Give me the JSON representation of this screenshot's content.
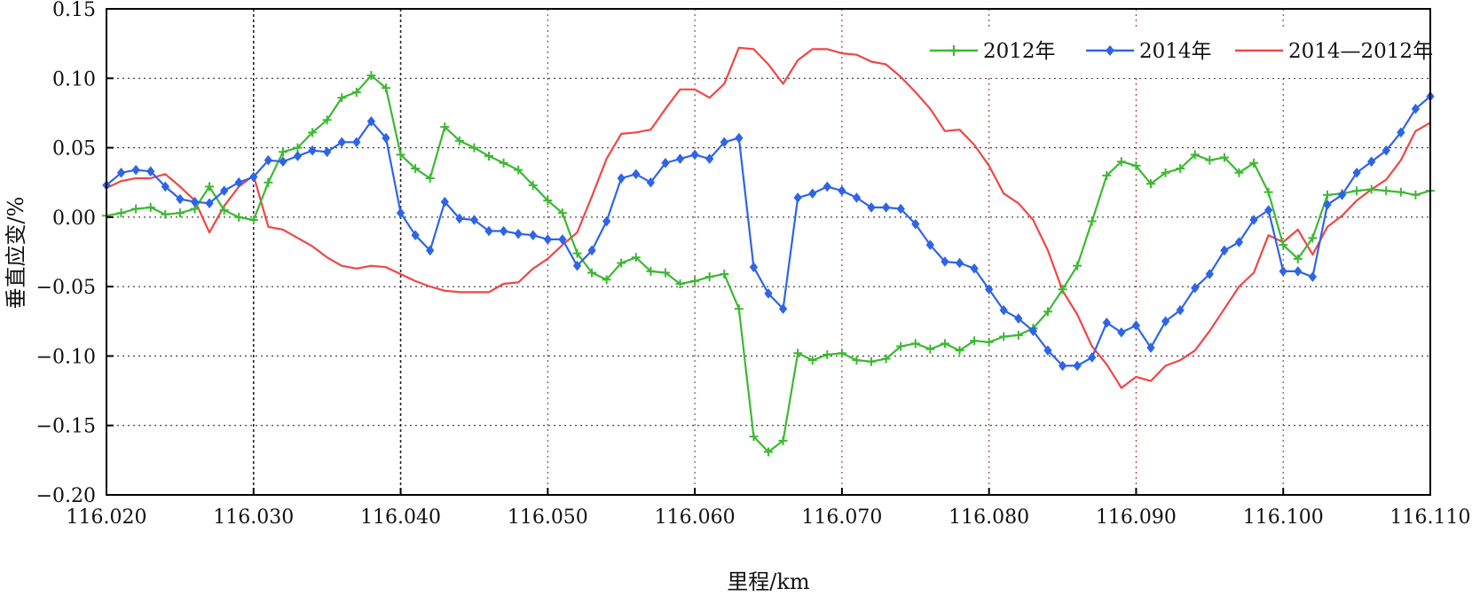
{
  "chart_data": {
    "type": "line",
    "title": "",
    "xlabel": "里程/km",
    "ylabel": "垂直应变/%",
    "xlim": [
      116.02,
      116.11
    ],
    "ylim": [
      -0.2,
      0.15
    ],
    "xticks": [
      "116.020",
      "116.030",
      "116.040",
      "116.050",
      "116.060",
      "116.070",
      "116.080",
      "116.090",
      "116.100",
      "116.110"
    ],
    "yticks": [
      "0.15",
      "0.10",
      "0.05",
      "0.00",
      "−0.05",
      "−0.10",
      "−0.15",
      "−0.20"
    ],
    "grid": true,
    "legend_position": "top-right",
    "x": [
      116.02,
      116.021,
      116.022,
      116.023,
      116.024,
      116.025,
      116.026,
      116.027,
      116.028,
      116.029,
      116.03,
      116.031,
      116.032,
      116.033,
      116.034,
      116.035,
      116.036,
      116.037,
      116.038,
      116.039,
      116.04,
      116.041,
      116.042,
      116.043,
      116.044,
      116.045,
      116.046,
      116.047,
      116.048,
      116.049,
      116.05,
      116.051,
      116.052,
      116.053,
      116.054,
      116.055,
      116.056,
      116.057,
      116.058,
      116.059,
      116.06,
      116.061,
      116.062,
      116.063,
      116.064,
      116.065,
      116.066,
      116.067,
      116.068,
      116.069,
      116.07,
      116.071,
      116.072,
      116.073,
      116.074,
      116.075,
      116.076,
      116.077,
      116.078,
      116.079,
      116.08,
      116.081,
      116.082,
      116.083,
      116.084,
      116.085,
      116.086,
      116.087,
      116.088,
      116.089,
      116.09,
      116.091,
      116.092,
      116.093,
      116.094,
      116.095,
      116.096,
      116.097,
      116.098,
      116.099,
      116.1,
      116.101,
      116.102,
      116.103,
      116.104,
      116.105,
      116.106,
      116.107,
      116.108,
      116.109,
      116.11
    ],
    "series": [
      {
        "name": "2012年",
        "color": "#3cb832",
        "marker": "plus",
        "values": [
          0.001,
          0.003,
          0.006,
          0.007,
          0.002,
          0.003,
          0.006,
          0.022,
          0.005,
          0.0,
          -0.002,
          0.025,
          0.047,
          0.05,
          0.061,
          0.07,
          0.086,
          0.09,
          0.102,
          0.093,
          0.045,
          0.035,
          0.028,
          0.065,
          0.055,
          0.05,
          0.044,
          0.039,
          0.034,
          0.023,
          0.012,
          0.003,
          -0.026,
          -0.04,
          -0.045,
          -0.033,
          -0.029,
          -0.039,
          -0.04,
          -0.048,
          -0.046,
          -0.043,
          -0.041,
          -0.066,
          -0.158,
          -0.169,
          -0.161,
          -0.098,
          -0.103,
          -0.099,
          -0.098,
          -0.103,
          -0.104,
          -0.102,
          -0.093,
          -0.091,
          -0.095,
          -0.091,
          -0.096,
          -0.089,
          -0.09,
          -0.086,
          -0.085,
          -0.08,
          -0.068,
          -0.052,
          -0.035,
          -0.003,
          0.03,
          0.04,
          0.037,
          0.024,
          0.032,
          0.035,
          0.045,
          0.041,
          0.043,
          0.032,
          0.039,
          0.018,
          -0.02,
          -0.03,
          -0.015,
          0.016,
          0.017,
          0.019,
          0.02,
          0.019,
          0.018,
          0.016,
          0.019
        ]
      },
      {
        "name": "2014年",
        "color": "#2f64e6",
        "marker": "diamond",
        "values": [
          0.023,
          0.032,
          0.034,
          0.033,
          0.022,
          0.013,
          0.011,
          0.01,
          0.019,
          0.025,
          0.029,
          0.041,
          0.04,
          0.044,
          0.048,
          0.047,
          0.054,
          0.054,
          0.069,
          0.057,
          0.003,
          -0.013,
          -0.024,
          0.011,
          -0.001,
          -0.002,
          -0.01,
          -0.01,
          -0.012,
          -0.013,
          -0.016,
          -0.016,
          -0.035,
          -0.024,
          -0.003,
          0.028,
          0.031,
          0.025,
          0.039,
          0.042,
          0.045,
          0.042,
          0.054,
          0.057,
          -0.036,
          -0.055,
          -0.066,
          0.014,
          0.017,
          0.022,
          0.019,
          0.014,
          0.007,
          0.007,
          0.006,
          -0.005,
          -0.02,
          -0.032,
          -0.033,
          -0.037,
          -0.052,
          -0.067,
          -0.073,
          -0.082,
          -0.096,
          -0.107,
          -0.107,
          -0.101,
          -0.076,
          -0.083,
          -0.078,
          -0.094,
          -0.075,
          -0.067,
          -0.051,
          -0.041,
          -0.024,
          -0.018,
          -0.002,
          0.005,
          -0.039,
          -0.039,
          -0.043,
          0.009,
          0.016,
          0.032,
          0.04,
          0.048,
          0.061,
          0.078,
          0.087
        ]
      },
      {
        "name": "2014—2012年",
        "color": "#f24545",
        "marker": "none",
        "values": [
          0.021,
          0.026,
          0.028,
          0.028,
          0.031,
          0.022,
          0.012,
          -0.011,
          0.008,
          0.022,
          0.03,
          -0.007,
          -0.009,
          -0.015,
          -0.021,
          -0.029,
          -0.035,
          -0.037,
          -0.035,
          -0.036,
          -0.041,
          -0.046,
          -0.05,
          -0.053,
          -0.054,
          -0.054,
          -0.054,
          -0.048,
          -0.047,
          -0.037,
          -0.03,
          -0.02,
          -0.011,
          0.015,
          0.042,
          0.06,
          0.061,
          0.063,
          0.078,
          0.092,
          0.092,
          0.086,
          0.096,
          0.122,
          0.121,
          0.11,
          0.096,
          0.113,
          0.121,
          0.121,
          0.118,
          0.117,
          0.112,
          0.11,
          0.101,
          0.09,
          0.078,
          0.062,
          0.063,
          0.052,
          0.037,
          0.017,
          0.01,
          -0.002,
          -0.024,
          -0.053,
          -0.07,
          -0.093,
          -0.106,
          -0.123,
          -0.115,
          -0.118,
          -0.107,
          -0.103,
          -0.096,
          -0.082,
          -0.066,
          -0.05,
          -0.04,
          -0.013,
          -0.018,
          -0.009,
          -0.027,
          -0.007,
          0.001,
          0.012,
          0.02,
          0.027,
          0.041,
          0.062,
          0.068
        ]
      }
    ]
  }
}
